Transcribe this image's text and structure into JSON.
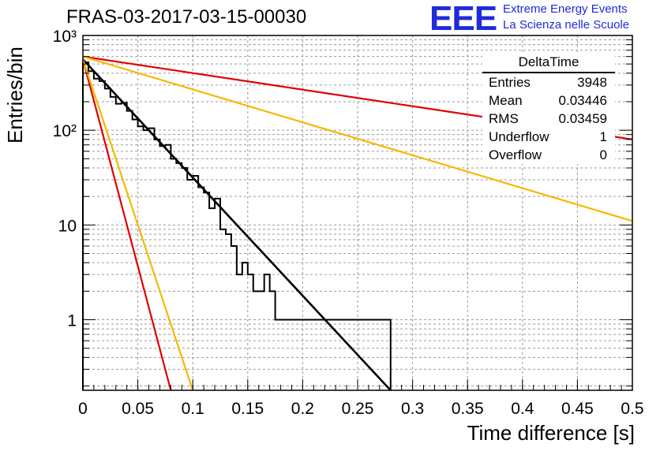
{
  "header": {
    "title": "FRAS-03-2017-03-15-00030",
    "logo_text": "EEE",
    "logo_line1": "Extreme Energy Events",
    "logo_line2": "La Scienza nelle Scuole"
  },
  "stats_box": {
    "title": "DeltaTime",
    "rows": [
      {
        "label": "Entries",
        "value": "3948"
      },
      {
        "label": "Mean",
        "value": "0.03446"
      },
      {
        "label": "RMS",
        "value": "0.03459"
      },
      {
        "label": "Underflow",
        "value": "1"
      },
      {
        "label": "Overflow",
        "value": "0"
      }
    ]
  },
  "colors": {
    "histogram": "#000000",
    "fit": "#000000",
    "red_curve": "#e00000",
    "yellow_curve": "#f5b800",
    "logo": "#1f2bd8"
  },
  "chart_data": {
    "type": "line",
    "title": "FRAS-03-2017-03-15-00030",
    "xlabel": "Time difference [s]",
    "ylabel": "Entries/bin",
    "xlim": [
      0,
      0.5
    ],
    "ylim": [
      0.18,
      1000
    ],
    "ylog": true,
    "grid": true,
    "x_ticks": [
      "0",
      "0.05",
      "0.1",
      "0.15",
      "0.2",
      "0.25",
      "0.3",
      "0.35",
      "0.4",
      "0.45",
      "0.5"
    ],
    "y_ticks": [
      "1",
      "10",
      "10²",
      "10³"
    ],
    "histogram": {
      "bin_width": 0.005,
      "x_start": 0,
      "counts": [
        520,
        420,
        350,
        330,
        275,
        225,
        190,
        195,
        160,
        130,
        110,
        100,
        105,
        80,
        68,
        70,
        50,
        45,
        40,
        30,
        33,
        25,
        22,
        15,
        19,
        9,
        8,
        6,
        3,
        4,
        3,
        2,
        2,
        3,
        2,
        1,
        1,
        1,
        1,
        1,
        1,
        1,
        1,
        1,
        1,
        1,
        1,
        1,
        1,
        1,
        1,
        1,
        1,
        1,
        1,
        1
      ]
    },
    "series": [
      {
        "x": [
          0,
          0.28
        ],
        "y": [
          560,
          0.18
        ]
      },
      {
        "x": [
          0,
          0.5
        ],
        "y": [
          600,
          80
        ]
      },
      {
        "x": [
          0,
          0.5
        ],
        "y": [
          600,
          11
        ]
      },
      {
        "x": [
          0,
          0.08
        ],
        "y": [
          560,
          0.18
        ]
      },
      {
        "x": [
          0,
          0.1
        ],
        "y": [
          560,
          0.18
        ]
      }
    ]
  }
}
